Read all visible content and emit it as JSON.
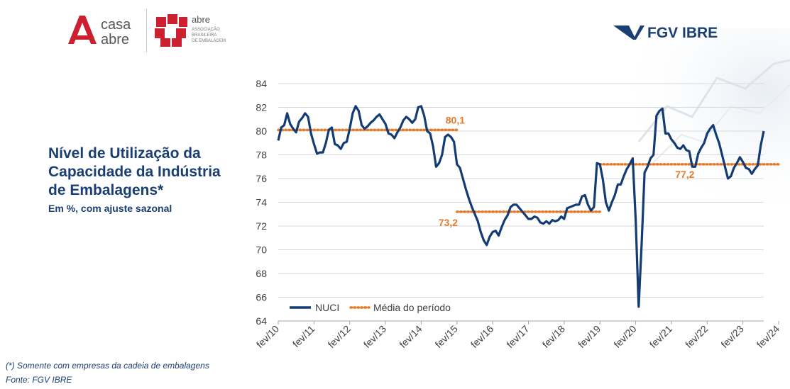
{
  "header": {
    "casa_abre_logo": "casa abre",
    "abre_logo": "abre ASSOCIAÇÃO BRASILEIRA DE EMBALAGEM",
    "fgv_logo": "FGV IBRE"
  },
  "title": "Nível de Utilização da\nCapacidade da Indústria\nde Embalagens*",
  "subtitle": "Em %, com ajuste sazonal",
  "footnote": "(*) Somente com empresas da cadeia de embalagens",
  "source": "Fonte: FGV IBRE",
  "colors": {
    "series": "#123c73",
    "average": "#e27b2c",
    "text": "#1b3f73"
  },
  "chart_data": {
    "type": "line",
    "title": "",
    "xlabel": "",
    "ylabel": "",
    "ylim": [
      64,
      84
    ],
    "yticks": [
      "64",
      "66",
      "68",
      "70",
      "72",
      "74",
      "76",
      "78",
      "80",
      "82",
      "84"
    ],
    "xticks": [
      "fev/10",
      "fev/11",
      "fev/12",
      "fev/13",
      "fev/14",
      "fev/15",
      "fev/16",
      "fev/17",
      "fev/18",
      "fev/19",
      "fev/20",
      "fev/21",
      "fev/22",
      "fev/23",
      "fev/24"
    ],
    "grid": true,
    "legend_position": "bottom-left",
    "series": [
      {
        "name": "NUCI",
        "x_start": "fev/10",
        "frequency": "monthly",
        "values": [
          79.2,
          80.3,
          80.5,
          81.5,
          80.6,
          80.2,
          79.9,
          80.8,
          81.1,
          81.5,
          81.2,
          79.8,
          78.9,
          78.1,
          78.2,
          78.2,
          79.0,
          80.1,
          80.3,
          78.9,
          78.8,
          78.5,
          79.0,
          79.1,
          80.2,
          81.5,
          82.1,
          81.7,
          80.5,
          80.2,
          80.4,
          80.7,
          80.9,
          81.2,
          81.4,
          81.0,
          80.6,
          79.8,
          79.7,
          79.4,
          79.9,
          80.3,
          80.9,
          81.2,
          81.0,
          80.7,
          81.0,
          82.0,
          82.1,
          81.3,
          80.0,
          79.8,
          78.7,
          77.0,
          77.3,
          78.0,
          79.5,
          79.7,
          79.5,
          79.1,
          77.2,
          76.9,
          76.0,
          75.1,
          74.3,
          73.6,
          73.0,
          72.4,
          71.5,
          70.8,
          70.4,
          71.1,
          71.5,
          71.6,
          71.2,
          71.9,
          72.5,
          72.9,
          73.6,
          73.8,
          73.8,
          73.5,
          73.2,
          72.9,
          72.6,
          72.6,
          72.8,
          72.7,
          72.3,
          72.2,
          72.4,
          72.2,
          72.5,
          72.4,
          72.5,
          72.8,
          72.6,
          73.5,
          73.6,
          73.7,
          73.8,
          73.8,
          74.5,
          74.6,
          73.8,
          73.3,
          73.6,
          77.3,
          77.2,
          75.9,
          74.0,
          73.3,
          74.0,
          74.6,
          75.5,
          75.5,
          76.2,
          76.8,
          77.2,
          77.7,
          72.5,
          65.2,
          70.5,
          76.5,
          77.0,
          77.7,
          78.0,
          81.3,
          81.7,
          81.9,
          79.8,
          79.8,
          79.3,
          79.0,
          78.6,
          78.5,
          78.8,
          78.4,
          78.3,
          77.0,
          77.0,
          78.1,
          78.6,
          79.0,
          79.8,
          80.2,
          80.5,
          79.7,
          79.0,
          78.0,
          77.0,
          76.0,
          76.2,
          76.9,
          77.3,
          77.8,
          77.4,
          76.9,
          76.8,
          76.4,
          76.8,
          77.1,
          78.8,
          80.0
        ]
      },
      {
        "name": "Média do período",
        "segments": [
          {
            "from": "fev/10",
            "to": "fev/15",
            "value": 80.1,
            "label": "80,1"
          },
          {
            "from": "fev/15",
            "to": "fev/19",
            "value": 73.2,
            "label": "73,2"
          },
          {
            "from": "fev/19",
            "to": "fev/24",
            "value": 77.2,
            "label": "77,2"
          }
        ]
      }
    ]
  }
}
